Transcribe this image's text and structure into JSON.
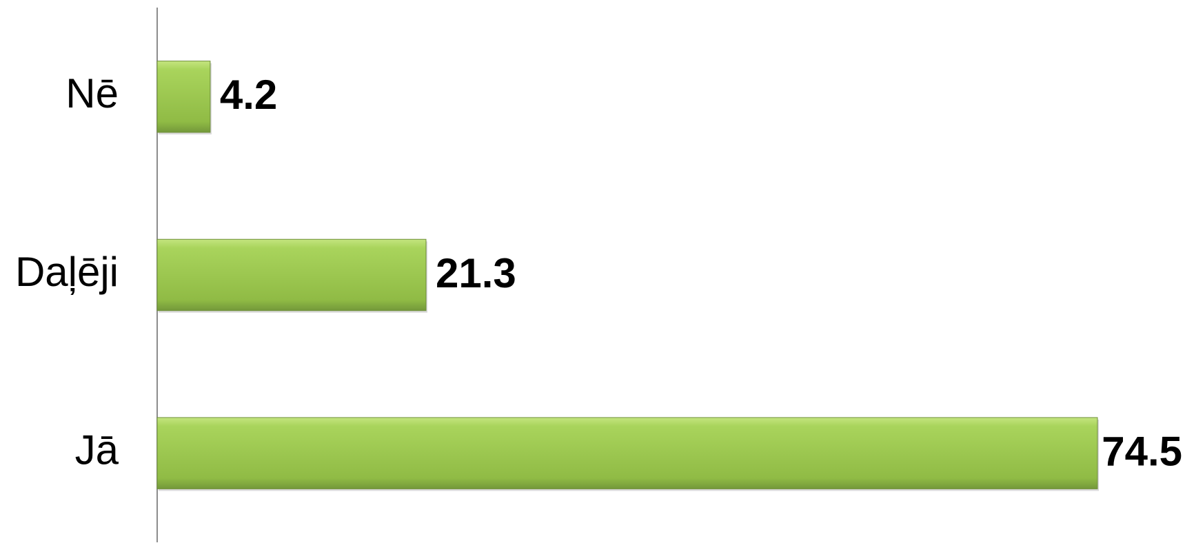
{
  "chart_data": {
    "type": "bar",
    "orientation": "horizontal",
    "categories": [
      "Nē",
      "Daļēji",
      "Jā"
    ],
    "values": [
      4.2,
      21.3,
      74.5
    ],
    "color": "#9bc74c"
  }
}
